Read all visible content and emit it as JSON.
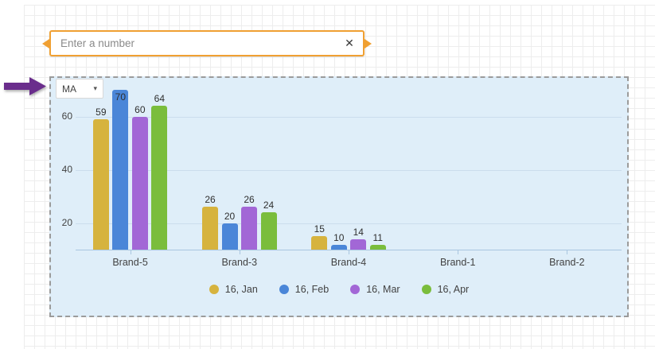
{
  "canvas": {
    "grid_color": "#ededed",
    "background": "#ffffff"
  },
  "number_input": {
    "placeholder": "Enter a number",
    "value": "",
    "clear_icon": "✕",
    "border_color": "#f0a032"
  },
  "annotation": {
    "arrow_color": "#6a2d8c",
    "direction": "right"
  },
  "chart_widget": {
    "background": "#dfeef9",
    "selection_border": "dashed",
    "dropdown": {
      "label": "MA",
      "caret": "▾"
    }
  },
  "chart_data": {
    "type": "bar",
    "title": "",
    "xlabel": "",
    "ylabel": "",
    "categories": [
      "Brand-5",
      "Brand-3",
      "Brand-4",
      "Brand-1",
      "Brand-2"
    ],
    "series": [
      {
        "name": "16, Jan",
        "color": "#d6b33e",
        "values": [
          59,
          26,
          15,
          null,
          null
        ]
      },
      {
        "name": "16, Feb",
        "color": "#4a86d8",
        "values": [
          70,
          20,
          10,
          null,
          null
        ]
      },
      {
        "name": "16, Mar",
        "color": "#a267d6",
        "values": [
          60,
          26,
          14,
          null,
          null
        ]
      },
      {
        "name": "16, Apr",
        "color": "#7abd3c",
        "values": [
          64,
          24,
          11,
          null,
          null
        ]
      }
    ],
    "y_ticks": [
      20,
      40,
      60
    ],
    "y_axis_start": 10,
    "ylim": [
      10,
      75
    ],
    "grid": "on",
    "value_labels": "on",
    "legend_position": "bottom"
  }
}
